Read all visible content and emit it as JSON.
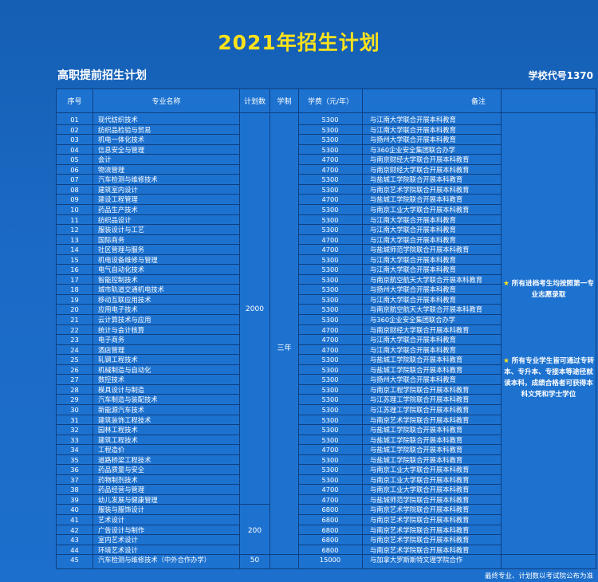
{
  "title": "2021年招生计划",
  "subtitle": "高职提前招生计划",
  "school_code": "学校代号1370",
  "table": {
    "headers": [
      "序号",
      "专业名称",
      "计划数",
      "学制",
      "学费（元/年）",
      "备注"
    ],
    "rows": [
      {
        "no": "01",
        "name": "现代纺织技术",
        "fee": "5300",
        "note": "与江南大学联合开展本科教育"
      },
      {
        "no": "02",
        "name": "纺织品检验与贸易",
        "fee": "5300",
        "note": "与江南大学联合开展本科教育"
      },
      {
        "no": "03",
        "name": "机电一体化技术",
        "fee": "5300",
        "note": "与扬州大学联合开展本科教育"
      },
      {
        "no": "04",
        "name": "信息安全与管理",
        "fee": "5300",
        "note": "与360企业安全集团联合办学"
      },
      {
        "no": "05",
        "name": "会计",
        "fee": "4700",
        "note": "与南京财经大学联合开展本科教育"
      },
      {
        "no": "06",
        "name": "物流管理",
        "fee": "4700",
        "note": "与南京财经大学联合开展本科教育"
      },
      {
        "no": "07",
        "name": "汽车检测与维修技术",
        "fee": "5300",
        "note": "与盐城工学院联合开展本科教育"
      },
      {
        "no": "08",
        "name": "建筑室内设计",
        "fee": "5300",
        "note": "与南京艺术学院联合开展本科教育"
      },
      {
        "no": "09",
        "name": "建设工程管理",
        "fee": "4700",
        "note": "与盐城工学院联合开展本科教育"
      },
      {
        "no": "10",
        "name": "药品生产技术",
        "fee": "5300",
        "note": "与南京工业大学联合开展本科教育"
      },
      {
        "no": "11",
        "name": "纺织品设计",
        "fee": "5300",
        "note": "与江南大学联合开展本科教育"
      },
      {
        "no": "12",
        "name": "服装设计与工艺",
        "fee": "5300",
        "note": "与江南大学联合开展本科教育"
      },
      {
        "no": "13",
        "name": "国际商务",
        "fee": "4700",
        "note": "与江南大学联合开展本科教育"
      },
      {
        "no": "14",
        "name": "社区管理与服务",
        "fee": "4700",
        "note": "与盐城师范学院联合开展本科教育"
      },
      {
        "no": "15",
        "name": "机电设备维修与管理",
        "fee": "5300",
        "note": "与江南大学联合开展本科教育"
      },
      {
        "no": "16",
        "name": "电气自动化技术",
        "fee": "5300",
        "note": "与江南大学联合开展本科教育"
      },
      {
        "no": "17",
        "name": "智能控制技术",
        "fee": "5300",
        "note": "与南京航空航天大学联合开展本科教育"
      },
      {
        "no": "18",
        "name": "城市轨道交通机电技术",
        "fee": "5300",
        "note": "与扬州大学联合开展本科教育"
      },
      {
        "no": "19",
        "name": "移动互联应用技术",
        "fee": "5300",
        "note": "与江南大学联合开展本科教育"
      },
      {
        "no": "20",
        "name": "应用电子技术",
        "fee": "5300",
        "note": "与南京航空航天大学联合开展本科教育"
      },
      {
        "no": "21",
        "name": "云计算技术与应用",
        "fee": "5300",
        "note": "与360企业安全集团联合办学"
      },
      {
        "no": "22",
        "name": "统计与会计核算",
        "fee": "4700",
        "note": "与南京财经大学联合开展本科教育"
      },
      {
        "no": "23",
        "name": "电子商务",
        "fee": "4700",
        "note": "与江南大学联合开展本科教育"
      },
      {
        "no": "24",
        "name": "酒店管理",
        "fee": "4700",
        "note": "与江南大学联合开展本科教育"
      },
      {
        "no": "25",
        "name": "轧钢工程技术",
        "fee": "5300",
        "note": "与盐城工学院联合开展本科教育"
      },
      {
        "no": "26",
        "name": "机械制造与自动化",
        "fee": "5300",
        "note": "与盐城工学院联合开展本科教育"
      },
      {
        "no": "27",
        "name": "数控技术",
        "fee": "5300",
        "note": "与扬州大学联合开展本科教育"
      },
      {
        "no": "28",
        "name": "模具设计与制造",
        "fee": "5300",
        "note": "与南京工程学院联合开展本科教育"
      },
      {
        "no": "29",
        "name": "汽车制造与装配技术",
        "fee": "5300",
        "note": "与江苏理工学院联合开展本科教育"
      },
      {
        "no": "30",
        "name": "新能源汽车技术",
        "fee": "5300",
        "note": "与江苏理工学院联合开展本科教育"
      },
      {
        "no": "31",
        "name": "建筑装饰工程技术",
        "fee": "5300",
        "note": "与南京艺术学院联合开展本科教育"
      },
      {
        "no": "32",
        "name": "园林工程技术",
        "fee": "5300",
        "note": "与盐城工学院联合开展本科教育"
      },
      {
        "no": "33",
        "name": "建筑工程技术",
        "fee": "5300",
        "note": "与盐城工学院联合开展本科教育"
      },
      {
        "no": "34",
        "name": "工程造价",
        "fee": "4700",
        "note": "与盐城工学院联合开展本科教育"
      },
      {
        "no": "35",
        "name": "道路桥梁工程技术",
        "fee": "5300",
        "note": "与盐城工学院联合开展本科教育"
      },
      {
        "no": "36",
        "name": "药品质量与安全",
        "fee": "5300",
        "note": "与南京工业大学联合开展本科教育"
      },
      {
        "no": "37",
        "name": "药物制剂技术",
        "fee": "5300",
        "note": "与南京工业大学联合开展本科教育"
      },
      {
        "no": "38",
        "name": "药品经营与管理",
        "fee": "4700",
        "note": "与南京工业大学联合开展本科教育"
      },
      {
        "no": "39",
        "name": "幼儿发展与健康管理",
        "fee": "4700",
        "note": "与盐城师范学院联合开展本科教育"
      },
      {
        "no": "40",
        "name": "服装与服饰设计",
        "fee": "6800",
        "note": "与南京艺术学院联合开展本科教育"
      },
      {
        "no": "41",
        "name": "艺术设计",
        "fee": "6800",
        "note": "与南京艺术学院联合开展本科教育"
      },
      {
        "no": "42",
        "name": "广告设计与制作",
        "fee": "6800",
        "note": "与南京艺术学院联合开展本科教育"
      },
      {
        "no": "43",
        "name": "室内艺术设计",
        "fee": "6800",
        "note": "与南京艺术学院联合开展本科教育"
      },
      {
        "no": "44",
        "name": "环境艺术设计",
        "fee": "6800",
        "note": "与南京艺术学院联合开展本科教育"
      },
      {
        "no": "45",
        "name": "汽车检测与维修技术（中外合作办学）",
        "fee": "15000",
        "note": "与加拿大罗斯斯特文理学院合作",
        "plan": "50"
      }
    ],
    "plan_group_1": "2000",
    "plan_group_2": "200",
    "duration": "三年",
    "side_note_1_star": "★",
    "side_note_1": "所有进档考生均按照第一专业志愿录取",
    "side_note_2_star": "★",
    "side_note_2": "所有专业学生皆可通过专转本、专升本、专接本等途径就读本科，成绩合格者可获得本科文凭和学士学位"
  },
  "footer": "最终专业、计划数以考试院公布为准"
}
